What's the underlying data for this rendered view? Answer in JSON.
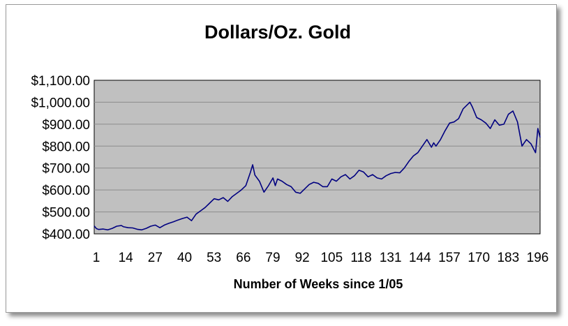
{
  "chart_data": {
    "type": "line",
    "title": "Dollars/Oz. Gold",
    "xlabel": "Number of Weeks since 1/05",
    "ylabel": "",
    "xlim": [
      1,
      198
    ],
    "ylim": [
      400,
      1100
    ],
    "y_ticks": [
      "$400.00",
      "$500.00",
      "$600.00",
      "$700.00",
      "$800.00",
      "$900.00",
      "$1,000.00",
      "$1,100.00"
    ],
    "x_ticks": [
      "1",
      "14",
      "27",
      "40",
      "53",
      "66",
      "79",
      "92",
      "105",
      "118",
      "131",
      "144",
      "157",
      "170",
      "183",
      "196"
    ],
    "grid": true,
    "legend": "none",
    "colors": {
      "line": "#000080",
      "plot_bg": "#c0c0c0",
      "grid": "#8c8c8c"
    },
    "series": [
      {
        "x": [
          1,
          2,
          3,
          5,
          7,
          9,
          11,
          13,
          14,
          16,
          18,
          20,
          22,
          24,
          26,
          28,
          30,
          32,
          34,
          36,
          38,
          40,
          42,
          44,
          46,
          48,
          50,
          52,
          54,
          56,
          58,
          60,
          62,
          64,
          66,
          68,
          70,
          71,
          72,
          74,
          76,
          78,
          80,
          81,
          82,
          84,
          86,
          88,
          90,
          92,
          94,
          96,
          98,
          100,
          102,
          104,
          106,
          108,
          110,
          112,
          114,
          116,
          118,
          120,
          122,
          124,
          126,
          128,
          130,
          132,
          134,
          136,
          138,
          140,
          142,
          144,
          146,
          148,
          150,
          151,
          152,
          154,
          156,
          158,
          160,
          162,
          164,
          166,
          167,
          168,
          170,
          172,
          174,
          176,
          178,
          180,
          182,
          184,
          186,
          188,
          190,
          191,
          192,
          194,
          196,
          197,
          198
        ],
        "values": [
          436,
          424,
          420,
          422,
          418,
          425,
          435,
          438,
          432,
          428,
          427,
          421,
          418,
          425,
          435,
          440,
          428,
          440,
          448,
          455,
          463,
          470,
          476,
          460,
          490,
          505,
          520,
          540,
          560,
          555,
          565,
          548,
          570,
          585,
          600,
          620,
          680,
          715,
          668,
          640,
          590,
          620,
          655,
          620,
          650,
          640,
          625,
          615,
          590,
          585,
          605,
          625,
          635,
          630,
          615,
          615,
          650,
          640,
          660,
          670,
          650,
          665,
          690,
          682,
          660,
          670,
          655,
          650,
          665,
          675,
          680,
          678,
          700,
          730,
          755,
          770,
          800,
          830,
          795,
          815,
          800,
          830,
          870,
          905,
          910,
          925,
          970,
          990,
          1000,
          980,
          930,
          920,
          905,
          880,
          920,
          895,
          900,
          945,
          960,
          910,
          800,
          815,
          830,
          810,
          770,
          880,
          840
        ]
      }
    ]
  }
}
